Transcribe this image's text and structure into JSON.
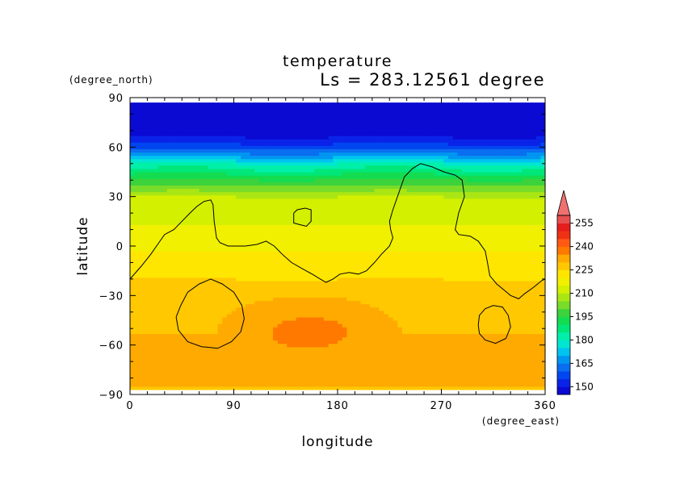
{
  "chart_data": {
    "type": "heatmap",
    "title": "temperature",
    "subtitle": "Ls = 283.12561 degree",
    "xlabel": "longitude",
    "ylabel": "latitude",
    "x_unit": "(degree_east)",
    "y_unit": "(degree_north)",
    "xlim": [
      0,
      360
    ],
    "ylim": [
      -90,
      90
    ],
    "x_ticks": [
      0,
      90,
      180,
      270,
      360
    ],
    "y_ticks": [
      90,
      60,
      30,
      0,
      -30,
      -60,
      -90
    ],
    "x_tick_labels": [
      "0",
      "90",
      "180",
      "270",
      "360"
    ],
    "y_tick_labels": [
      "90",
      "60",
      "30",
      "0",
      "−30",
      "−60",
      "−90"
    ],
    "data_lat_range": [
      -87,
      87
    ],
    "colorbar": {
      "levels": [
        145,
        150,
        155,
        160,
        165,
        170,
        175,
        180,
        185,
        190,
        195,
        200,
        205,
        210,
        215,
        220,
        225,
        230,
        235,
        240,
        245,
        250,
        255,
        260
      ],
      "colors": [
        "#0a0ad2",
        "#0a23e8",
        "#0046f0",
        "#0a6ef0",
        "#0096f0",
        "#00c3f0",
        "#00e6d2",
        "#00f0aa",
        "#00e678",
        "#14dc50",
        "#3cd23c",
        "#78dc28",
        "#aae614",
        "#d2f000",
        "#f0f000",
        "#ffe600",
        "#ffc800",
        "#ffaa00",
        "#ff7800",
        "#ff5a14",
        "#f03214",
        "#e61e1e",
        "#e65050"
      ],
      "tick_labels": [
        "150",
        "165",
        "180",
        "195",
        "210",
        "225",
        "240",
        "255"
      ],
      "tick_values": [
        150,
        165,
        180,
        195,
        210,
        225,
        240,
        255
      ],
      "over_color": "#f07070"
    },
    "zonal_temperature_profile": {
      "lat": [
        -87,
        -80,
        -70,
        -60,
        -45,
        -30,
        -20,
        -10,
        0,
        10,
        20,
        30,
        40,
        50,
        55,
        60,
        65,
        70,
        80,
        87
      ],
      "temperature": [
        229,
        232,
        233,
        231,
        229,
        227,
        225,
        223,
        219,
        216,
        213,
        210,
        196,
        180,
        168,
        158,
        151,
        147,
        146,
        145
      ]
    },
    "warm_region": {
      "lon_range": [
        75,
        235
      ],
      "lat_range": [
        -75,
        -30
      ],
      "temperature": 236
    },
    "contour_lines": [
      [
        [
          0,
          -20
        ],
        [
          10,
          -12
        ],
        [
          18,
          -5
        ],
        [
          25,
          2
        ],
        [
          30,
          7
        ],
        [
          38,
          10
        ],
        [
          45,
          15
        ],
        [
          52,
          20
        ],
        [
          58,
          24
        ],
        [
          64,
          27
        ],
        [
          70,
          28
        ],
        [
          72,
          25
        ],
        [
          73,
          15
        ],
        [
          75,
          5
        ],
        [
          78,
          2
        ],
        [
          85,
          0
        ],
        [
          100,
          0
        ],
        [
          110,
          1
        ],
        [
          118,
          3
        ],
        [
          125,
          0
        ],
        [
          132,
          -5
        ],
        [
          140,
          -10
        ],
        [
          150,
          -14
        ],
        [
          158,
          -17
        ],
        [
          165,
          -20
        ],
        [
          170,
          -22
        ],
        [
          176,
          -20
        ],
        [
          182,
          -17
        ],
        [
          190,
          -16
        ],
        [
          198,
          -17
        ],
        [
          205,
          -15
        ],
        [
          212,
          -10
        ],
        [
          218,
          -5
        ],
        [
          225,
          0
        ],
        [
          228,
          5
        ],
        [
          226,
          10
        ],
        [
          225,
          15
        ],
        [
          228,
          22
        ],
        [
          232,
          30
        ],
        [
          238,
          42
        ],
        [
          245,
          47
        ],
        [
          252,
          50
        ],
        [
          262,
          48
        ],
        [
          272,
          45
        ],
        [
          282,
          43
        ],
        [
          288,
          40
        ],
        [
          290,
          30
        ],
        [
          285,
          20
        ],
        [
          282,
          10
        ],
        [
          285,
          7
        ],
        [
          295,
          6
        ],
        [
          302,
          3
        ],
        [
          308,
          -3
        ],
        [
          310,
          -10
        ],
        [
          312,
          -18
        ],
        [
          318,
          -23
        ],
        [
          325,
          -27
        ],
        [
          330,
          -30
        ],
        [
          337,
          -32
        ],
        [
          342,
          -29
        ],
        [
          350,
          -25
        ],
        [
          357,
          -21
        ],
        [
          360,
          -20
        ]
      ],
      [
        [
          142,
          20
        ],
        [
          145,
          22
        ],
        [
          152,
          23
        ],
        [
          157,
          22
        ],
        [
          157,
          15
        ],
        [
          153,
          12
        ],
        [
          147,
          13
        ],
        [
          142,
          14
        ],
        [
          142,
          20
        ]
      ],
      [
        [
          40,
          -43
        ],
        [
          44,
          -36
        ],
        [
          50,
          -28
        ],
        [
          60,
          -23
        ],
        [
          70,
          -20
        ],
        [
          80,
          -23
        ],
        [
          90,
          -28
        ],
        [
          97,
          -36
        ],
        [
          99,
          -44
        ],
        [
          96,
          -52
        ],
        [
          88,
          -58
        ],
        [
          76,
          -62
        ],
        [
          62,
          -61
        ],
        [
          50,
          -58
        ],
        [
          42,
          -51
        ],
        [
          40,
          -43
        ]
      ],
      [
        [
          302,
          -48
        ],
        [
          303,
          -42
        ],
        [
          308,
          -38
        ],
        [
          315,
          -36
        ],
        [
          323,
          -37
        ],
        [
          328,
          -42
        ],
        [
          330,
          -49
        ],
        [
          326,
          -56
        ],
        [
          317,
          -59
        ],
        [
          308,
          -57
        ],
        [
          303,
          -53
        ],
        [
          302,
          -48
        ]
      ]
    ]
  }
}
